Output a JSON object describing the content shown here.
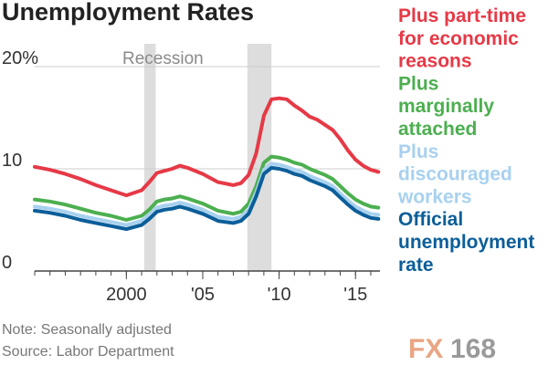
{
  "chart_data": {
    "type": "line",
    "title": "Unemployment Rates",
    "recession_label": "Recession",
    "recessions": [
      [
        2001.17,
        2001.92
      ],
      [
        2007.92,
        2009.5
      ]
    ],
    "ylim": [
      0,
      20
    ],
    "yticks": [
      {
        "value": 0,
        "label": "0"
      },
      {
        "value": 10,
        "label": "10"
      },
      {
        "value": 20,
        "label": "20%"
      }
    ],
    "xlim": [
      1994,
      2016.6
    ],
    "xticks": [
      {
        "value": 2000,
        "label": "2000"
      },
      {
        "value": 2005,
        "label": "'05"
      },
      {
        "value": 2010,
        "label": "'10"
      },
      {
        "value": 2015,
        "label": "'15"
      }
    ],
    "x": [
      1994.0,
      1995.0,
      1996.0,
      1997.0,
      1998.0,
      1999.0,
      2000.0,
      2001.0,
      2001.5,
      2002.0,
      2002.5,
      2003.0,
      2003.5,
      2004.0,
      2005.0,
      2006.0,
      2007.0,
      2007.5,
      2008.0,
      2008.5,
      2009.0,
      2009.5,
      2010.0,
      2010.5,
      2011.0,
      2011.5,
      2012.0,
      2012.5,
      2013.0,
      2013.5,
      2014.0,
      2014.5,
      2015.0,
      2015.5,
      2016.0,
      2016.5
    ],
    "series": [
      {
        "name": "Plus part-time for economic reasons",
        "color": "#e63946",
        "values": [
          10.2,
          9.9,
          9.5,
          9.0,
          8.4,
          7.9,
          7.4,
          7.9,
          8.7,
          9.6,
          9.8,
          10.0,
          10.3,
          10.1,
          9.5,
          8.7,
          8.4,
          8.6,
          9.4,
          11.5,
          15.2,
          16.8,
          16.9,
          16.8,
          16.2,
          15.7,
          15.1,
          14.8,
          14.3,
          13.8,
          12.9,
          11.8,
          10.9,
          10.3,
          9.9,
          9.7
        ]
      },
      {
        "name": "Plus marginally attached",
        "color": "#4caf50",
        "values": [
          7.0,
          6.8,
          6.5,
          6.1,
          5.7,
          5.4,
          5.0,
          5.4,
          6.0,
          6.8,
          7.0,
          7.1,
          7.3,
          7.1,
          6.6,
          5.9,
          5.6,
          5.8,
          6.6,
          8.3,
          10.6,
          11.2,
          11.1,
          10.9,
          10.6,
          10.4,
          10.0,
          9.7,
          9.4,
          9.0,
          8.3,
          7.6,
          7.0,
          6.6,
          6.3,
          6.2
        ]
      },
      {
        "name": "Plus discouraged workers",
        "color": "#a8d1ef",
        "values": [
          6.3,
          6.1,
          5.8,
          5.4,
          5.1,
          4.8,
          4.5,
          4.9,
          5.5,
          6.2,
          6.4,
          6.5,
          6.7,
          6.5,
          6.0,
          5.3,
          5.1,
          5.3,
          6.0,
          7.7,
          9.9,
          10.5,
          10.4,
          10.2,
          9.9,
          9.7,
          9.3,
          9.0,
          8.7,
          8.3,
          7.6,
          6.9,
          6.3,
          5.9,
          5.6,
          5.5
        ]
      },
      {
        "name": "Official unemployment rate",
        "color": "#0b5e99",
        "values": [
          5.9,
          5.7,
          5.4,
          5.0,
          4.7,
          4.4,
          4.1,
          4.5,
          5.1,
          5.8,
          6.0,
          6.1,
          6.3,
          6.1,
          5.6,
          4.9,
          4.7,
          4.9,
          5.6,
          7.3,
          9.5,
          10.1,
          10.0,
          9.8,
          9.5,
          9.3,
          8.9,
          8.6,
          8.3,
          7.9,
          7.2,
          6.5,
          5.9,
          5.5,
          5.2,
          5.1
        ]
      }
    ],
    "legend": [
      {
        "lines": [
          "Plus part-time",
          "for economic",
          "reasons"
        ],
        "color": "#e63946"
      },
      {
        "lines": [
          "Plus",
          "marginally",
          "attached"
        ],
        "color": "#4caf50"
      },
      {
        "lines": [
          "Plus",
          "discouraged",
          "workers"
        ],
        "color": "#a8d1ef"
      },
      {
        "lines": [
          "Official",
          "unemployment",
          "rate"
        ],
        "color": "#0b5e99"
      }
    ],
    "notes": [
      "Note: Seasonally adjusted",
      "Source: Labor Department"
    ],
    "legend_position": "right"
  },
  "watermark": {
    "part1": "FX",
    "part2": "168"
  }
}
